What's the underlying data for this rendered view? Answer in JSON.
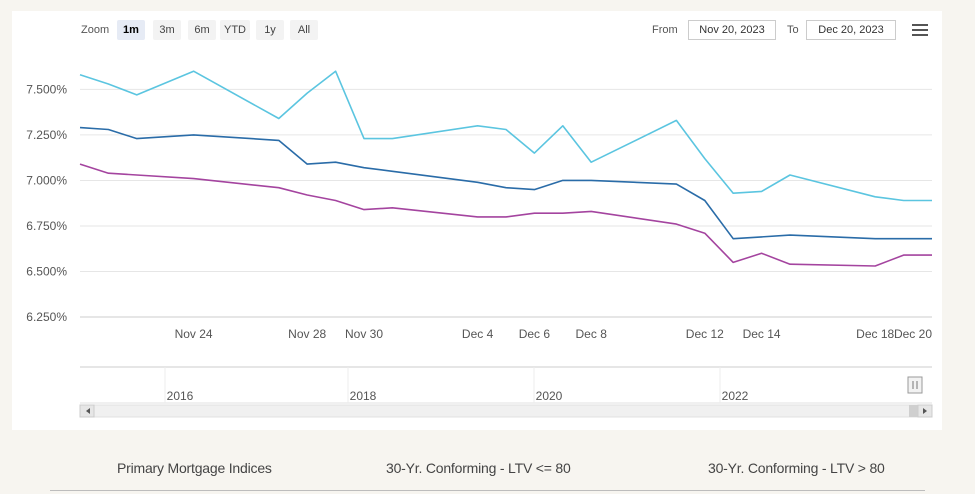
{
  "toolbar": {
    "zoom_label": "Zoom",
    "zoom_buttons": [
      "1m",
      "3m",
      "6m",
      "YTD",
      "1y",
      "All"
    ],
    "active_zoom": "1m",
    "from_label": "From",
    "from_value": "Nov 20, 2023",
    "to_label": "To",
    "to_value": "Dec 20, 2023",
    "menu_icon": "hamburger-menu-icon"
  },
  "chart_data": {
    "type": "line",
    "x": [
      "2023-11-20",
      "2023-11-21",
      "2023-11-22",
      "2023-11-24",
      "2023-11-27",
      "2023-11-28",
      "2023-11-29",
      "2023-11-30",
      "2023-12-01",
      "2023-12-04",
      "2023-12-05",
      "2023-12-06",
      "2023-12-07",
      "2023-12-08",
      "2023-12-11",
      "2023-12-12",
      "2023-12-13",
      "2023-12-14",
      "2023-12-15",
      "2023-12-18",
      "2023-12-19",
      "2023-12-20"
    ],
    "x_tick_labels": [
      "Nov 24",
      "Nov 28",
      "Nov 30",
      "Dec 4",
      "Dec 6",
      "Dec 8",
      "Dec 12",
      "Dec 14",
      "Dec 18",
      "Dec 20"
    ],
    "series": [
      {
        "color": "#5bc5e0",
        "values": [
          7.58,
          7.53,
          7.47,
          7.6,
          7.34,
          7.48,
          7.6,
          7.23,
          7.23,
          7.3,
          7.28,
          7.15,
          7.3,
          7.1,
          7.33,
          7.12,
          6.93,
          6.94,
          7.03,
          6.91,
          6.89,
          6.89
        ]
      },
      {
        "color": "#2a6ca8",
        "values": [
          7.29,
          7.28,
          7.23,
          7.25,
          7.22,
          7.09,
          7.1,
          7.07,
          7.05,
          6.99,
          6.96,
          6.95,
          7.0,
          7.0,
          6.98,
          6.89,
          6.68,
          6.69,
          6.7,
          6.68,
          6.68,
          6.68
        ]
      },
      {
        "color": "#a4449f",
        "values": [
          7.09,
          7.04,
          7.03,
          7.01,
          6.96,
          6.92,
          6.89,
          6.84,
          6.85,
          6.8,
          6.8,
          6.82,
          6.82,
          6.83,
          6.76,
          6.71,
          6.55,
          6.6,
          6.54,
          6.53,
          6.59,
          6.59
        ]
      }
    ],
    "y_ticks": [
      "6.250%",
      "6.500%",
      "6.750%",
      "7.000%",
      "7.250%",
      "7.500%"
    ],
    "ylim": [
      6.25,
      7.7
    ],
    "grid": true,
    "navigator": {
      "year_labels": [
        "2016",
        "2018",
        "2020",
        "2022"
      ]
    }
  },
  "footer": {
    "columns": [
      "Primary Mortgage Indices",
      "30-Yr. Conforming - LTV <= 80",
      "30-Yr. Conforming - LTV > 80"
    ]
  }
}
